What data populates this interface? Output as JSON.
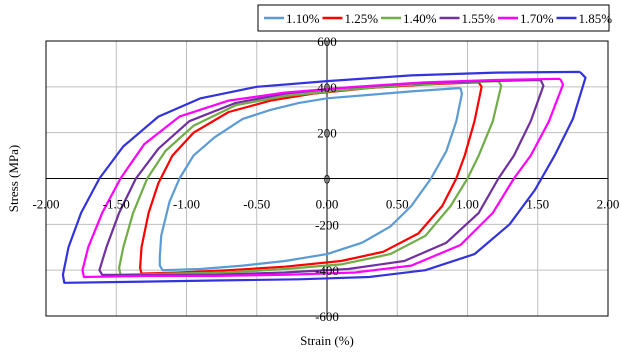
{
  "chart_data": {
    "type": "line",
    "title": "",
    "xlabel": "Strain (%)",
    "ylabel": "Stress (MPa)",
    "xlim": [
      -2.0,
      2.0
    ],
    "ylim": [
      -600,
      600
    ],
    "x_ticks": [
      "-2.00",
      "-1.50",
      "-1.00",
      "-0.50",
      "0.00",
      "0.50",
      "1.00",
      "1.50",
      "2.00"
    ],
    "y_ticks": [
      "600",
      "400",
      "200",
      "0",
      "-200",
      "-400",
      "-600"
    ],
    "grid": true,
    "legend_position": "top",
    "series": [
      {
        "name": "1.10%",
        "color": "#5b9bd5",
        "points": [
          [
            0.95,
            395
          ],
          [
            0.96,
            370
          ],
          [
            0.92,
            250
          ],
          [
            0.85,
            120
          ],
          [
            0.74,
            0
          ],
          [
            0.6,
            -120
          ],
          [
            0.45,
            -210
          ],
          [
            0.25,
            -280
          ],
          [
            0.0,
            -330
          ],
          [
            -0.3,
            -360
          ],
          [
            -0.6,
            -380
          ],
          [
            -0.9,
            -395
          ],
          [
            -1.17,
            -400
          ],
          [
            -1.19,
            -380
          ],
          [
            -1.19,
            -340
          ],
          [
            -1.18,
            -250
          ],
          [
            -1.12,
            -100
          ],
          [
            -1.05,
            0
          ],
          [
            -0.95,
            100
          ],
          [
            -0.8,
            180
          ],
          [
            -0.6,
            260
          ],
          [
            -0.4,
            300
          ],
          [
            -0.2,
            330
          ],
          [
            0.0,
            350
          ],
          [
            0.3,
            365
          ],
          [
            0.6,
            380
          ],
          [
            0.95,
            395
          ]
        ]
      },
      {
        "name": "1.25%",
        "color": "#ff0000",
        "points": [
          [
            1.08,
            420
          ],
          [
            1.1,
            400
          ],
          [
            1.05,
            250
          ],
          [
            0.98,
            100
          ],
          [
            0.92,
            0
          ],
          [
            0.82,
            -120
          ],
          [
            0.65,
            -240
          ],
          [
            0.4,
            -320
          ],
          [
            0.1,
            -360
          ],
          [
            -0.3,
            -385
          ],
          [
            -0.7,
            -400
          ],
          [
            -1.05,
            -410
          ],
          [
            -1.32,
            -415
          ],
          [
            -1.33,
            -390
          ],
          [
            -1.32,
            -300
          ],
          [
            -1.27,
            -150
          ],
          [
            -1.2,
            -20
          ],
          [
            -1.1,
            100
          ],
          [
            -0.95,
            200
          ],
          [
            -0.7,
            290
          ],
          [
            -0.4,
            340
          ],
          [
            -0.1,
            370
          ],
          [
            0.3,
            395
          ],
          [
            0.7,
            410
          ],
          [
            1.08,
            420
          ]
        ]
      },
      {
        "name": "1.40%",
        "color": "#70ad47",
        "points": [
          [
            1.22,
            425
          ],
          [
            1.24,
            405
          ],
          [
            1.18,
            250
          ],
          [
            1.08,
            100
          ],
          [
            1.0,
            0
          ],
          [
            0.88,
            -120
          ],
          [
            0.7,
            -250
          ],
          [
            0.45,
            -330
          ],
          [
            0.1,
            -375
          ],
          [
            -0.3,
            -395
          ],
          [
            -0.7,
            -410
          ],
          [
            -1.1,
            -415
          ],
          [
            -1.47,
            -420
          ],
          [
            -1.48,
            -390
          ],
          [
            -1.45,
            -300
          ],
          [
            -1.38,
            -150
          ],
          [
            -1.28,
            0
          ],
          [
            -1.15,
            120
          ],
          [
            -0.95,
            230
          ],
          [
            -0.65,
            320
          ],
          [
            -0.3,
            360
          ],
          [
            0.1,
            385
          ],
          [
            0.5,
            405
          ],
          [
            0.9,
            418
          ],
          [
            1.22,
            425
          ]
        ]
      },
      {
        "name": "1.55%",
        "color": "#7030a0",
        "points": [
          [
            1.52,
            430
          ],
          [
            1.54,
            405
          ],
          [
            1.45,
            250
          ],
          [
            1.33,
            100
          ],
          [
            1.22,
            0
          ],
          [
            1.08,
            -150
          ],
          [
            0.85,
            -280
          ],
          [
            0.55,
            -360
          ],
          [
            0.15,
            -395
          ],
          [
            -0.3,
            -410
          ],
          [
            -0.8,
            -420
          ],
          [
            -1.2,
            -420
          ],
          [
            -1.6,
            -420
          ],
          [
            -1.62,
            -400
          ],
          [
            -1.57,
            -300
          ],
          [
            -1.48,
            -150
          ],
          [
            -1.36,
            0
          ],
          [
            -1.2,
            130
          ],
          [
            -0.98,
            250
          ],
          [
            -0.65,
            330
          ],
          [
            -0.3,
            370
          ],
          [
            0.1,
            395
          ],
          [
            0.6,
            415
          ],
          [
            1.1,
            425
          ],
          [
            1.52,
            430
          ]
        ]
      },
      {
        "name": "1.70%",
        "color": "#ff00ff",
        "points": [
          [
            1.66,
            435
          ],
          [
            1.68,
            410
          ],
          [
            1.58,
            250
          ],
          [
            1.45,
            100
          ],
          [
            1.33,
            0
          ],
          [
            1.18,
            -150
          ],
          [
            0.95,
            -290
          ],
          [
            0.6,
            -380
          ],
          [
            0.2,
            -410
          ],
          [
            -0.3,
            -420
          ],
          [
            -0.8,
            -425
          ],
          [
            -1.3,
            -425
          ],
          [
            -1.73,
            -430
          ],
          [
            -1.74,
            -400
          ],
          [
            -1.7,
            -300
          ],
          [
            -1.6,
            -150
          ],
          [
            -1.47,
            0
          ],
          [
            -1.3,
            150
          ],
          [
            -1.05,
            270
          ],
          [
            -0.7,
            340
          ],
          [
            -0.3,
            375
          ],
          [
            0.2,
            400
          ],
          [
            0.7,
            420
          ],
          [
            1.2,
            430
          ],
          [
            1.66,
            435
          ]
        ]
      },
      {
        "name": "1.85%",
        "color": "#3333dd",
        "points": [
          [
            1.8,
            465
          ],
          [
            1.84,
            440
          ],
          [
            1.75,
            260
          ],
          [
            1.62,
            100
          ],
          [
            1.48,
            -50
          ],
          [
            1.3,
            -200
          ],
          [
            1.05,
            -330
          ],
          [
            0.7,
            -400
          ],
          [
            0.3,
            -430
          ],
          [
            -0.2,
            -440
          ],
          [
            -0.8,
            -445
          ],
          [
            -1.3,
            -450
          ],
          [
            -1.87,
            -455
          ],
          [
            -1.88,
            -420
          ],
          [
            -1.84,
            -300
          ],
          [
            -1.75,
            -150
          ],
          [
            -1.62,
            0
          ],
          [
            -1.45,
            140
          ],
          [
            -1.2,
            270
          ],
          [
            -0.9,
            350
          ],
          [
            -0.5,
            400
          ],
          [
            0.0,
            425
          ],
          [
            0.6,
            450
          ],
          [
            1.2,
            462
          ],
          [
            1.8,
            465
          ]
        ]
      }
    ]
  }
}
